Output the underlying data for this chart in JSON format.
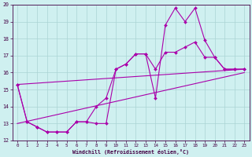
{
  "xlabel": "Windchill (Refroidissement éolien,°C)",
  "background_color": "#cff0f0",
  "grid_color": "#aad4d4",
  "line_color": "#aa00aa",
  "xlim": [
    -0.5,
    23.5
  ],
  "ylim": [
    12,
    20
  ],
  "yticks": [
    12,
    13,
    14,
    15,
    16,
    17,
    18,
    19,
    20
  ],
  "xticks": [
    0,
    1,
    2,
    3,
    4,
    5,
    6,
    7,
    8,
    9,
    10,
    11,
    12,
    13,
    14,
    15,
    16,
    17,
    18,
    19,
    20,
    21,
    22,
    23
  ],
  "series_jagged1": {
    "x": [
      0,
      1,
      2,
      3,
      4,
      5,
      6,
      7,
      8,
      9,
      10,
      11,
      12,
      13,
      14,
      15,
      16,
      17,
      18,
      19,
      20,
      21,
      22,
      23
    ],
    "y": [
      15.3,
      13.1,
      12.8,
      12.5,
      12.5,
      12.5,
      13.1,
      13.1,
      13.0,
      13.0,
      16.2,
      16.5,
      17.1,
      17.1,
      14.5,
      18.8,
      19.8,
      19.0,
      19.8,
      17.9,
      16.9,
      16.2,
      16.2,
      16.2
    ]
  },
  "series_jagged2": {
    "x": [
      0,
      1,
      2,
      3,
      4,
      5,
      6,
      7,
      8,
      9,
      10,
      11,
      12,
      13,
      14,
      15,
      16,
      17,
      18,
      19,
      20,
      21,
      22,
      23
    ],
    "y": [
      15.3,
      13.1,
      12.8,
      12.5,
      12.5,
      12.5,
      13.1,
      13.1,
      14.0,
      14.5,
      16.2,
      16.5,
      17.1,
      17.1,
      16.2,
      17.2,
      17.2,
      17.5,
      17.8,
      16.9,
      16.9,
      16.2,
      16.2,
      16.2
    ]
  },
  "series_line1": {
    "x": [
      0,
      23
    ],
    "y": [
      15.3,
      16.2
    ]
  },
  "series_line2": {
    "x": [
      0,
      23
    ],
    "y": [
      13.0,
      16.0
    ]
  }
}
